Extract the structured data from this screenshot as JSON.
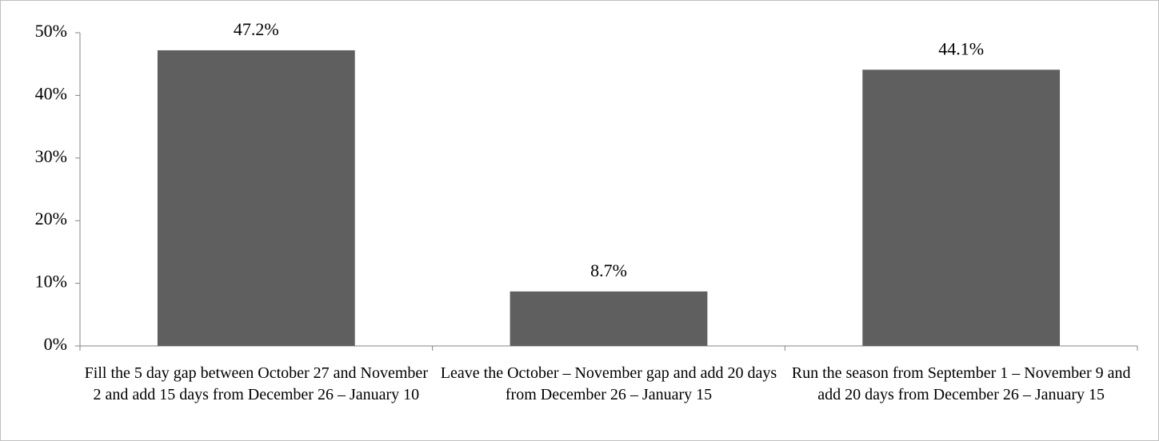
{
  "chart_data": {
    "type": "bar",
    "categories": [
      "Fill the 5 day gap between October 27 and November 2 and add 15 days from December 26 – January 10",
      "Leave the October – November gap and add 20 days from December 26 – January 15",
      "Run the season from September 1 – November 9 and add 20 days from December 26 – January 15"
    ],
    "values": [
      47.2,
      8.7,
      44.1
    ],
    "value_labels": [
      "47.2%",
      "8.7%",
      "44.1%"
    ],
    "color": "#5f5f5f",
    "ylim": [
      0,
      50
    ],
    "yticks": [
      {
        "value": 0,
        "label": "0%"
      },
      {
        "value": 10,
        "label": "10%"
      },
      {
        "value": 20,
        "label": "20%"
      },
      {
        "value": 30,
        "label": "30%"
      },
      {
        "value": 40,
        "label": "40%"
      },
      {
        "value": 50,
        "label": "50%"
      }
    ]
  }
}
